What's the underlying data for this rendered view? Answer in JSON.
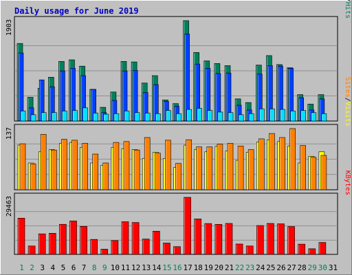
{
  "chart_data": [
    {
      "type": "bar",
      "title": "Daily usage for June 2019",
      "categories": [
        "1",
        "2",
        "3",
        "4",
        "5",
        "6",
        "7",
        "8",
        "9",
        "10",
        "11",
        "12",
        "13",
        "14",
        "15",
        "16",
        "17",
        "18",
        "19",
        "20",
        "21",
        "22",
        "23",
        "24",
        "25",
        "26",
        "27",
        "28",
        "29",
        "30",
        "31"
      ],
      "weekend_categories": [
        "1",
        "2",
        "8",
        "9",
        "15",
        "16",
        "22",
        "23",
        "29",
        "30"
      ],
      "ymax_label": "1903",
      "ylim": [
        0,
        1903
      ],
      "legend": [
        {
          "label": "Pages",
          "color": "#00e0ff"
        },
        {
          "label": "/",
          "color": "#000000"
        },
        {
          "label": "Files",
          "color": "#0040ff"
        },
        {
          "label": "/",
          "color": "#000000"
        },
        {
          "label": "Hits",
          "color": "#00805c"
        }
      ],
      "series": [
        {
          "name": "Hits",
          "color": "#00805c",
          "values": [
            1470,
            450,
            620,
            830,
            1130,
            1160,
            1040,
            600,
            260,
            550,
            1130,
            1120,
            720,
            860,
            400,
            330,
            1903,
            1300,
            1140,
            1090,
            1050,
            420,
            350,
            1060,
            1240,
            1070,
            1010,
            500,
            320,
            500,
            0
          ]
        },
        {
          "name": "Files",
          "color": "#0040ff",
          "values": [
            1290,
            250,
            780,
            650,
            950,
            1000,
            860,
            600,
            160,
            390,
            950,
            960,
            540,
            690,
            370,
            280,
            1650,
            1080,
            1000,
            900,
            910,
            300,
            210,
            890,
            1050,
            1040,
            1000,
            440,
            210,
            420,
            0
          ]
        },
        {
          "name": "Pages",
          "color": "#00e0ff",
          "values": [
            190,
            120,
            160,
            160,
            190,
            200,
            250,
            150,
            130,
            140,
            190,
            160,
            150,
            140,
            200,
            140,
            220,
            240,
            200,
            170,
            160,
            120,
            140,
            230,
            230,
            220,
            190,
            200,
            160,
            140,
            0
          ]
        }
      ]
    },
    {
      "type": "bar",
      "categories": [
        "1",
        "2",
        "3",
        "4",
        "5",
        "6",
        "7",
        "8",
        "9",
        "10",
        "11",
        "12",
        "13",
        "14",
        "15",
        "16",
        "17",
        "18",
        "19",
        "20",
        "21",
        "22",
        "23",
        "24",
        "25",
        "26",
        "27",
        "28",
        "29",
        "30",
        "31"
      ],
      "ymax_label": "137",
      "ylim": [
        0,
        137
      ],
      "legend": [
        {
          "label": "Sites",
          "color": "#ff8000"
        },
        {
          "label": "/",
          "color": "#000000"
        },
        {
          "label": "Visits",
          "color": "#ffff00"
        }
      ],
      "series": [
        {
          "name": "Visits",
          "color": "#ffff00",
          "values": [
            100,
            60,
            85,
            90,
            104,
            106,
            95,
            60,
            55,
            95,
            92,
            90,
            70,
            84,
            70,
            50,
            100,
            90,
            85,
            97,
            87,
            66,
            84,
            107,
            112,
            108,
            98,
            60,
            75,
            85,
            0
          ]
        },
        {
          "name": "Sites",
          "color": "#ff8000",
          "values": [
            103,
            58,
            124,
            89,
            113,
            111,
            104,
            80,
            60,
            106,
            108,
            89,
            117,
            82,
            111,
            59,
            112,
            96,
            96,
            102,
            104,
            98,
            90,
            114,
            126,
            117,
            137,
            99,
            73,
            77,
            0
          ]
        }
      ]
    },
    {
      "type": "bar",
      "categories": [
        "1",
        "2",
        "3",
        "4",
        "5",
        "6",
        "7",
        "8",
        "9",
        "10",
        "11",
        "12",
        "13",
        "14",
        "15",
        "16",
        "17",
        "18",
        "19",
        "20",
        "21",
        "22",
        "23",
        "24",
        "25",
        "26",
        "27",
        "28",
        "29",
        "30",
        "31"
      ],
      "ymax_label": "29463",
      "ylim": [
        0,
        29463
      ],
      "legend": [
        {
          "label": "KBytes",
          "color": "#ff0000"
        }
      ],
      "series": [
        {
          "name": "KBytes",
          "color": "#ff0000",
          "values": [
            18700,
            4330,
            10600,
            10900,
            15540,
            17270,
            14450,
            7740,
            2680,
            7140,
            16880,
            16470,
            7920,
            11980,
            5860,
            4000,
            29463,
            18300,
            15930,
            15500,
            15980,
            5350,
            4340,
            14900,
            15980,
            15790,
            14370,
            5290,
            2910,
            6170,
            0
          ]
        }
      ]
    }
  ]
}
